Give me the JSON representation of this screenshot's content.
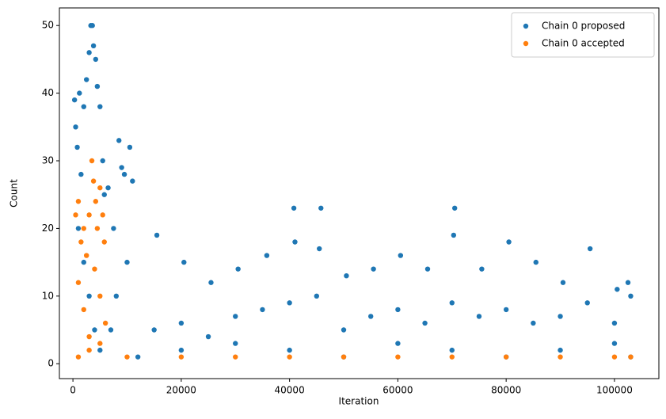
{
  "chart_data": {
    "type": "scatter",
    "xlabel": "Iteration",
    "ylabel": "Count",
    "xlim": [
      -2500,
      108200
    ],
    "ylim": [
      -2.2,
      52.6
    ],
    "xticks": [
      0,
      20000,
      40000,
      60000,
      80000,
      100000
    ],
    "yticks": [
      0,
      10,
      20,
      30,
      40,
      50
    ],
    "legend": "upper right",
    "marker_size": 3.2,
    "series": [
      {
        "name": "Chain 0 proposed",
        "color": "#1f77b4",
        "x": [
          300,
          500,
          800,
          1200,
          1500,
          2000,
          2500,
          3000,
          3300,
          3600,
          3800,
          4200,
          4500,
          5000,
          5500,
          5800,
          1000,
          2000,
          3000,
          4000,
          5000,
          6500,
          7500,
          8500,
          9000,
          9500,
          10500,
          11000,
          8000,
          10000,
          7000,
          15500,
          20500,
          25500,
          30500,
          35800,
          40800,
          41000,
          45800,
          45500,
          50500,
          55500,
          60500,
          65500,
          70500,
          70300,
          75500,
          80500,
          85500,
          90500,
          95500,
          100500,
          102500,
          103000,
          15000,
          20000,
          25000,
          30000,
          35000,
          40000,
          45000,
          50000,
          55000,
          60000,
          65000,
          70000,
          75000,
          80000,
          85000,
          90000,
          95000,
          100000,
          12000,
          20000,
          30000,
          40000,
          50000,
          60000,
          70000,
          80000,
          90000,
          100000,
          103000
        ],
        "y": [
          39,
          35,
          32,
          40,
          28,
          38,
          42,
          46,
          50,
          50,
          47,
          45,
          41,
          38,
          30,
          25,
          20,
          15,
          10,
          5,
          2,
          26,
          20,
          33,
          29,
          28,
          32,
          27,
          10,
          15,
          5,
          19,
          15,
          12,
          14,
          16,
          23,
          18,
          23,
          17,
          13,
          14,
          16,
          14,
          23,
          19,
          14,
          18,
          15,
          12,
          17,
          11,
          12,
          10,
          5,
          6,
          4,
          7,
          8,
          9,
          10,
          5,
          7,
          8,
          6,
          9,
          7,
          8,
          6,
          7,
          9,
          6,
          1,
          2,
          3,
          2,
          1,
          3,
          2,
          1,
          2,
          3,
          1
        ]
      },
      {
        "name": "Chain 0 accepted",
        "color": "#ff7f0e",
        "x": [
          500,
          1000,
          1500,
          2000,
          2500,
          3000,
          3500,
          3800,
          4200,
          4500,
          5000,
          5500,
          5800,
          1000,
          2000,
          3000,
          4000,
          5000,
          6000,
          1000,
          3000,
          5000,
          10000,
          20000,
          30000,
          40000,
          50000,
          60000,
          70000,
          80000,
          90000,
          100000,
          103000
        ],
        "y": [
          22,
          24,
          18,
          20,
          16,
          22,
          30,
          27,
          24,
          20,
          26,
          22,
          18,
          12,
          8,
          4,
          14,
          10,
          6,
          1,
          2,
          3,
          1,
          1,
          1,
          1,
          1,
          1,
          1,
          1,
          1,
          1,
          1
        ]
      }
    ]
  }
}
